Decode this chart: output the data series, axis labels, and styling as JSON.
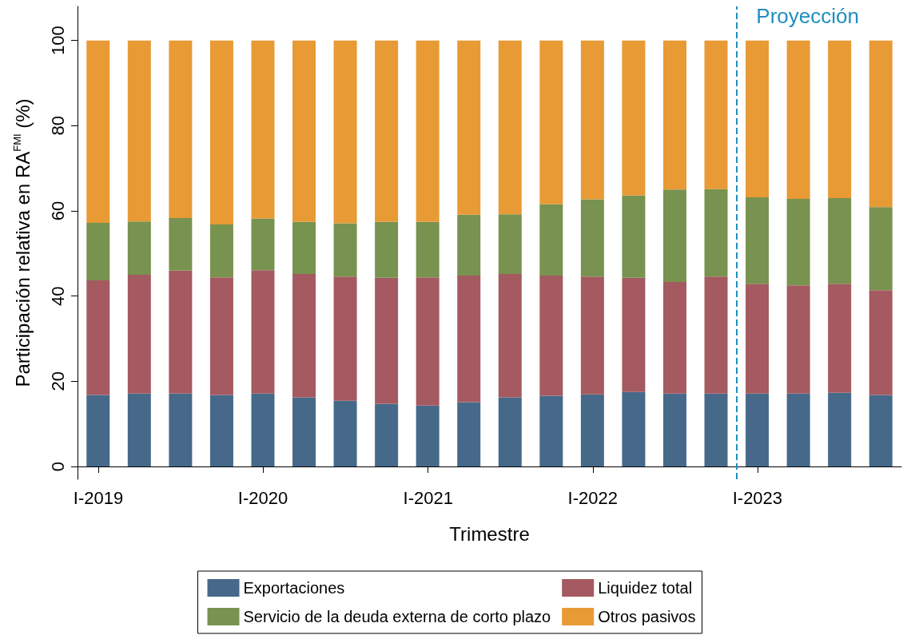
{
  "chart_data": {
    "type": "bar",
    "stacked": true,
    "xlabel": "Trimestre",
    "ylabel": "Participación relativa en RA$^{FMI}$ (%)",
    "x": [
      "2019-01",
      "2019-04",
      "2019-07",
      "2019-10",
      "2020-01",
      "2020-04",
      "2020-07",
      "2020-10",
      "2021-01",
      "2021-04",
      "2021-07",
      "2021-10",
      "2022-01",
      "2022-04",
      "2022-07",
      "2022-10",
      "2023-01",
      "2023-04",
      "2023-07",
      "2023-10"
    ],
    "xlim": [
      "2018-11-16",
      "2023-11-16"
    ],
    "xticks": [
      {
        "value": "2019-01",
        "label": "I-2019"
      },
      {
        "value": "2020-01",
        "label": "I-2020"
      },
      {
        "value": "2021-01",
        "label": "I-2021"
      },
      {
        "value": "2022-01",
        "label": "I-2022"
      },
      {
        "value": "2023-01",
        "label": "I-2023"
      }
    ],
    "ylim": [
      -3,
      108
    ],
    "yticks": [
      0,
      20,
      40,
      60,
      80,
      100
    ],
    "grid": false,
    "legend": "bottom",
    "series": [
      {
        "name": "Exportaciones",
        "color": "#46698a",
        "values": [
          16.8,
          17.1,
          17.1,
          16.8,
          17.1,
          16.2,
          15.4,
          14.7,
          14.3,
          15.1,
          16.2,
          16.6,
          16.9,
          17.5,
          17.1,
          17.1,
          17.1,
          17.1,
          17.3,
          16.8
        ]
      },
      {
        "name": "Liquidez total",
        "color": "#a45a60",
        "values": [
          26.9,
          27.9,
          28.9,
          27.6,
          29.0,
          29.0,
          29.2,
          29.6,
          30.1,
          29.7,
          29.0,
          28.2,
          27.7,
          26.8,
          26.2,
          27.5,
          25.8,
          25.4,
          25.6,
          24.6
        ]
      },
      {
        "name": "Servicio de la deuda externa de corto plazo",
        "color": "#78924f",
        "values": [
          13.5,
          12.5,
          12.3,
          12.4,
          12.1,
          12.2,
          12.5,
          13.1,
          13.0,
          14.3,
          14.0,
          16.8,
          18.1,
          19.3,
          21.7,
          20.5,
          20.3,
          20.3,
          20.1,
          19.5
        ]
      },
      {
        "name": "Otros pasivos",
        "color": "#e89a35",
        "values": [
          42.8,
          42.5,
          41.7,
          43.2,
          41.8,
          42.6,
          42.9,
          42.6,
          42.6,
          40.9,
          40.8,
          38.4,
          37.3,
          36.4,
          35.0,
          34.9,
          36.8,
          37.2,
          37.0,
          39.1
        ]
      }
    ],
    "ref_lines": [
      {
        "axis": "x",
        "value": "2022-11-15",
        "label": "Proyección",
        "color": "#1f8fbf",
        "line_style": "dashed"
      }
    ]
  }
}
